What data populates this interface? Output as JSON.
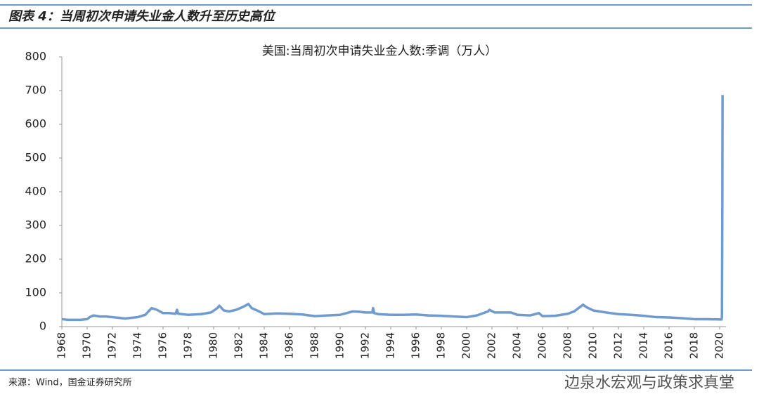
{
  "header": {
    "title": "图表 4：当周初次申请失业金人数升至历史高位"
  },
  "chart_data": {
    "type": "line",
    "title": "美国:当周初次申请失业金人数:季调（万人）",
    "x": [
      1968.0,
      1968.5,
      1969.0,
      1969.5,
      1970.0,
      1970.2,
      1970.5,
      1971.0,
      1971.5,
      1972.0,
      1972.5,
      1973.0,
      1973.5,
      1974.0,
      1974.6,
      1975.1,
      1975.5,
      1976.0,
      1976.5,
      1977.0,
      1977.1,
      1977.2,
      1978.0,
      1979.0,
      1979.8,
      1980.3,
      1980.45,
      1980.8,
      1981.2,
      1981.8,
      1982.3,
      1982.75,
      1983.0,
      1983.6,
      1984.0,
      1985.0,
      1986.0,
      1987.0,
      1988.0,
      1989.0,
      1990.0,
      1991.0,
      1991.5,
      1992.0,
      1992.55,
      1992.6,
      1992.7,
      1993.0,
      1994.0,
      1995.0,
      1996.0,
      1997.0,
      1998.0,
      1999.0,
      2000.0,
      2000.8,
      2001.7,
      2001.8,
      2002.2,
      2003.0,
      2003.5,
      2004.0,
      2005.0,
      2005.7,
      2006.0,
      2007.0,
      2008.0,
      2008.5,
      2009.2,
      2009.5,
      2010.0,
      2011.0,
      2012.0,
      2013.0,
      2014.0,
      2015.0,
      2016.0,
      2017.0,
      2018.0,
      2019.0,
      2020.15,
      2020.18,
      2020.21,
      2020.23
    ],
    "series": [
      {
        "name": "美国:当周初次申请失业金人数:季调",
        "color": "#6f9bd1",
        "values": [
          22,
          20,
          20,
          20,
          22,
          28,
          33,
          30,
          30,
          28,
          26,
          24,
          26,
          28,
          35,
          55,
          50,
          40,
          40,
          38,
          50,
          38,
          35,
          37,
          42,
          55,
          62,
          48,
          45,
          50,
          58,
          67,
          55,
          45,
          37,
          39,
          38,
          36,
          31,
          33,
          35,
          45,
          44,
          42,
          42,
          55,
          40,
          37,
          35,
          35,
          36,
          33,
          32,
          30,
          28,
          33,
          45,
          50,
          42,
          42,
          42,
          35,
          33,
          40,
          31,
          32,
          38,
          45,
          65,
          57,
          48,
          42,
          37,
          35,
          32,
          28,
          27,
          25,
          22,
          22,
          21,
          28,
          331,
          687
        ]
      }
    ],
    "xlim": [
      1968,
      2020.5
    ],
    "xticks": [
      1968,
      1970,
      1972,
      1974,
      1976,
      1978,
      1980,
      1982,
      1984,
      1986,
      1988,
      1990,
      1992,
      1994,
      1996,
      1998,
      2000,
      2002,
      2004,
      2006,
      2008,
      2010,
      2012,
      2014,
      2016,
      2018,
      2020
    ],
    "ylim": [
      0,
      800
    ],
    "yticks": [
      0,
      100,
      200,
      300,
      400,
      500,
      600,
      700,
      800
    ],
    "grid": false
  },
  "footer": {
    "source": "来源：Wind，国金证券研究所",
    "watermark": "边泉水宏观与政策求真堂"
  }
}
